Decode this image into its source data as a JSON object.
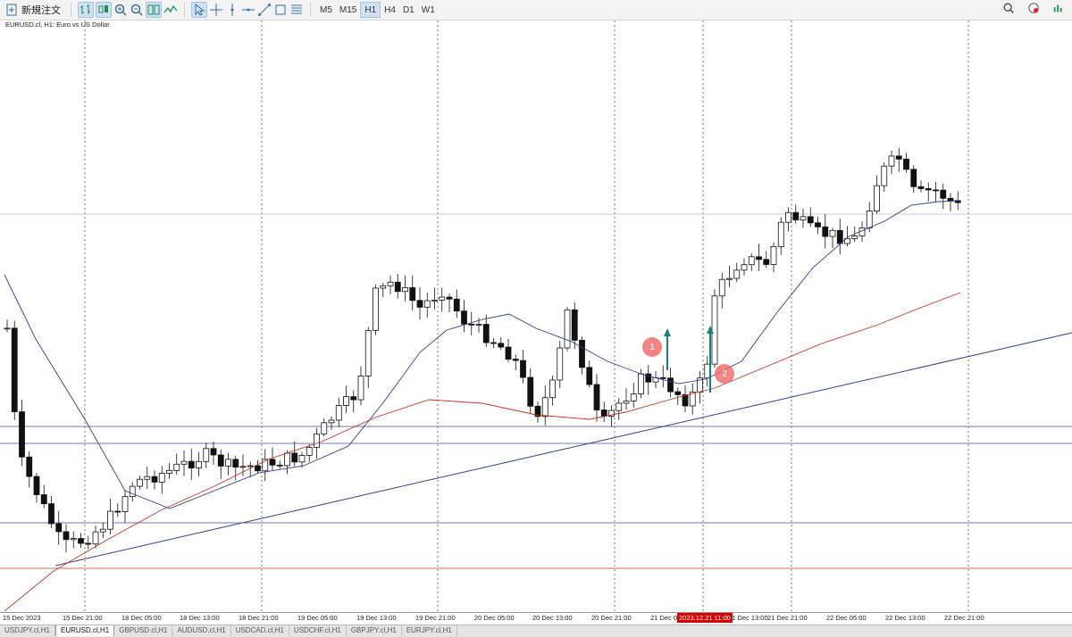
{
  "toolbar": {
    "new_order_label": "新規注文",
    "timeframes": [
      "M5",
      "M15",
      "H1",
      "H4",
      "D1",
      "W1"
    ],
    "active_timeframe": "H1"
  },
  "chart": {
    "label": "EURUSD.cl, H1:  Euro vs US Dollar",
    "time_labels": [
      "15 Dec 2023",
      "15 Dec 21:00",
      "18 Dec 05:00",
      "18 Dec 13:00",
      "18 Dec 21:00",
      "19 Dec 05:00",
      "19 Dec 13:00",
      "19 Dec 21:00",
      "20 Dec 05:00",
      "20 Dec 13:00",
      "20 Dec 21:00",
      "21 Dec 05:00",
      "21 Dec 13:00",
      "21 Dec 21:00",
      "22 Dec 05:00",
      "22 Dec 13:00",
      "22 Dec 21:00"
    ],
    "current_time_label": "2023.12.21 11:00",
    "markers": [
      "1",
      "2"
    ]
  },
  "tabs": [
    "USDJPY.cl,H1",
    "EURUSD.cl,H1",
    "GBPUSD.cl,H1",
    "AUDUSD.cl,H1",
    "USDCAD.cl,H1",
    "USDCHF.cl,H1",
    "GBPJPY.cl,H1",
    "EURJPY.cl,H1"
  ],
  "active_tab": "EURUSD.cl,H1",
  "colors": {
    "ma_fast": "#3b3b8f",
    "ma_slow": "#c0392b",
    "trendline": "#3b3b8f",
    "arrow": "#1f7a7a",
    "marker": "#f06e6e",
    "current_time": "#d40000"
  }
}
